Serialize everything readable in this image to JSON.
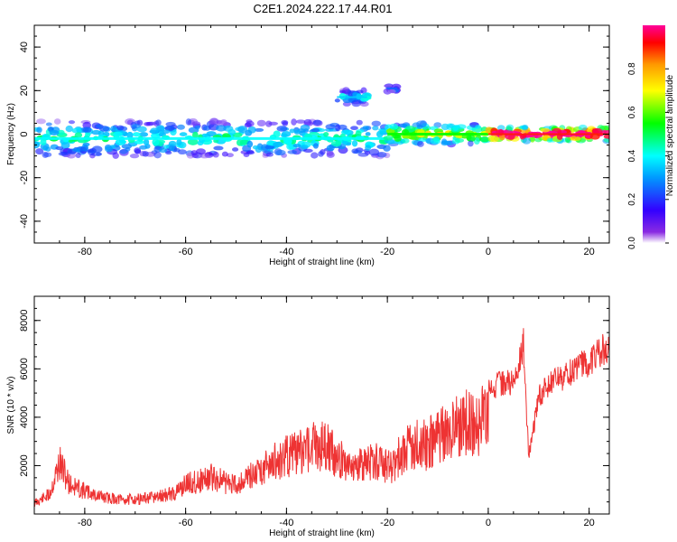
{
  "title": "C2E1.2024.222.17.44.R01",
  "colorbar": {
    "label": "Normalized spectral amplitude",
    "ticks": [
      "0.0",
      "0.2",
      "0.4",
      "0.6",
      "0.8"
    ],
    "range": [
      0,
      1
    ],
    "colormap": "rainbow"
  },
  "chart_data": [
    {
      "type": "heatmap",
      "xlabel": "Height of straight line (km)",
      "ylabel": "Frequency (Hz)",
      "xlim": [
        -90,
        24
      ],
      "ylim": [
        -50,
        50
      ],
      "xticks": [
        "-80",
        "-60",
        "-40",
        "-20",
        "0",
        "20"
      ],
      "yticks": [
        "40",
        "20",
        "0",
        "-20",
        "-40"
      ],
      "xtick_values": [
        -80,
        -60,
        -40,
        -20,
        0,
        20
      ],
      "ytick_values": [
        40,
        20,
        0,
        -20,
        -40
      ],
      "band_center_freq_hz": 0,
      "features": [
        {
          "x_range": [
            -90,
            -20
          ],
          "freq_center": -2,
          "freq_halfwidth": 5,
          "intensity": 0.3
        },
        {
          "x_range": [
            -20,
            0
          ],
          "freq_center": 0,
          "freq_halfwidth": 3,
          "intensity": 0.45
        },
        {
          "x_range": [
            0,
            24
          ],
          "freq_center": 0,
          "freq_halfwidth": 2,
          "intensity": 0.8
        },
        {
          "x_range": [
            -30,
            -24
          ],
          "freq_center": 17,
          "freq_halfwidth": 2,
          "intensity": 0.25
        },
        {
          "x_range": [
            -20,
            -18
          ],
          "freq_center": 21,
          "freq_halfwidth": 1,
          "intensity": 0.15
        }
      ]
    },
    {
      "type": "line",
      "xlabel": "Height of straight line (km)",
      "ylabel": "SNR (10 * v/v)",
      "xlim": [
        -90,
        24
      ],
      "ylim": [
        0,
        9000
      ],
      "xticks": [
        "-80",
        "-60",
        "-40",
        "-20",
        "0",
        "20"
      ],
      "yticks": [
        "8000",
        "6000",
        "4000",
        "2000"
      ],
      "xtick_values": [
        -80,
        -60,
        -40,
        -20,
        0,
        20
      ],
      "ytick_values": [
        8000,
        6000,
        4000,
        2000
      ],
      "color": "#ee3333",
      "series": [
        {
          "x": [
            -90,
            -87,
            -85,
            -83,
            -80,
            -77,
            -75,
            -72,
            -70,
            -67,
            -65,
            -62,
            -60,
            -57,
            -55,
            -52,
            -50,
            -47,
            -45,
            -42,
            -40,
            -37,
            -35,
            -32,
            -30,
            -27,
            -25,
            -22,
            -20,
            -17,
            -15,
            -12,
            -10,
            -7,
            -5,
            -2,
            0,
            2,
            5,
            7,
            8,
            10,
            12,
            15,
            17,
            20,
            22,
            24
          ],
          "y": [
            600,
            1100,
            2900,
            1700,
            1300,
            1000,
            900,
            800,
            850,
            900,
            1000,
            1200,
            1700,
            1900,
            2100,
            1800,
            1700,
            2200,
            2600,
            3000,
            3300,
            3500,
            4000,
            3800,
            3200,
            2900,
            2700,
            3100,
            2600,
            3400,
            4000,
            3900,
            4500,
            4900,
            5100,
            5300,
            5600,
            5900,
            6000,
            7700,
            2600,
            5300,
            5900,
            6200,
            6600,
            6900,
            7300,
            7700
          ]
        }
      ]
    }
  ]
}
